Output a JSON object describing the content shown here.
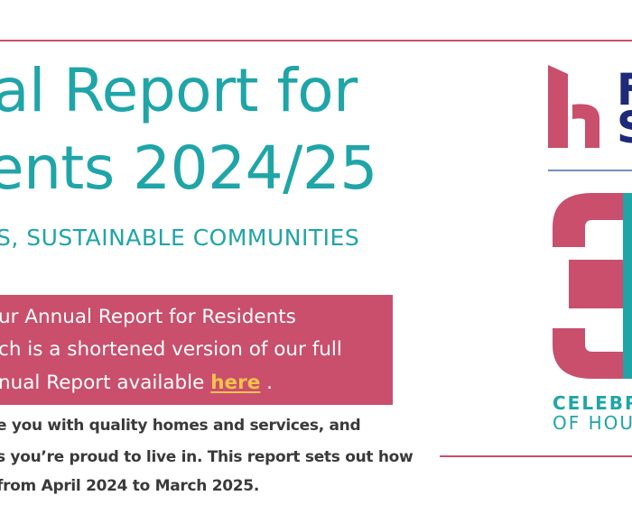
{
  "title": {
    "line1": "al Report for",
    "line2": "ents 2024/25"
  },
  "subtitle": "S, SUSTAINABLE COMMUNITIES",
  "callout": {
    "line1": "ur Annual Report for Residents",
    "line2": "ch is a shortened version of our full",
    "line3_prefix": "nual Report available ",
    "link_text": "here",
    "line3_suffix": " ."
  },
  "intro": {
    "line1": "e you with quality homes and services, and",
    "line2": "s you’re proud to live in. This report sets out how",
    "line3": " from April 2024 to March 2025."
  },
  "logo": {
    "text_line1": "F",
    "text_line2": "S"
  },
  "anniversary": {
    "line1": "CELEBR",
    "line2": "OF HOU"
  },
  "colors": {
    "teal": "#1fa5a8",
    "pink": "#c94f6d",
    "navy": "#1e2a78",
    "link": "#f6c34a"
  }
}
